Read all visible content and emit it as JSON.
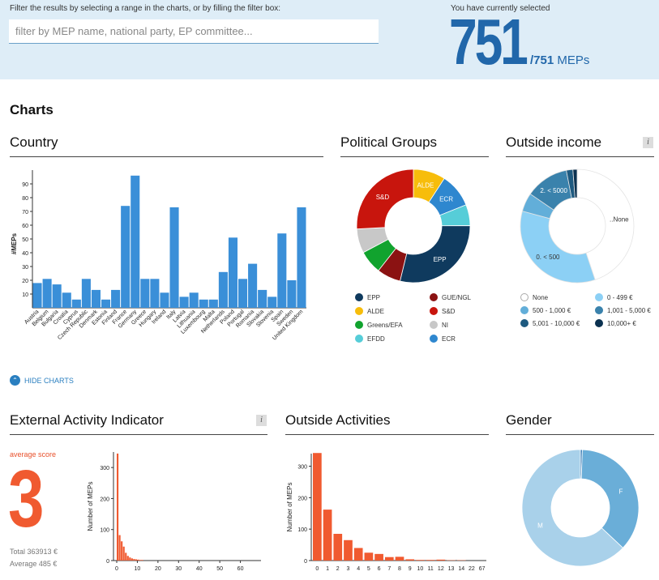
{
  "filter": {
    "hint": "Filter the results by selecting a range in the charts, or by filling the filter box:",
    "placeholder": "filter by MEP name, national party, EP committee..."
  },
  "selection": {
    "caption": "You have currently selected",
    "count": "751",
    "total": "/751",
    "unit": " MEPs"
  },
  "charts_heading": "Charts",
  "hide_charts": "HIDE CHARTS",
  "chart_data": [
    {
      "id": "country",
      "type": "bar",
      "title": "Country",
      "ylabel": "#MEPs",
      "ylim": [
        0,
        100
      ],
      "yticks": [
        "10",
        "20",
        "30",
        "40",
        "50",
        "60",
        "70",
        "80",
        "90"
      ],
      "categories": [
        "Austria",
        "Belgium",
        "Bulgaria",
        "Croatia",
        "Cyprus",
        "Czech Republic",
        "Denmark",
        "Estonia",
        "Finland",
        "France",
        "Germany",
        "Greece",
        "Hungary",
        "Ireland",
        "Italy",
        "Latvia",
        "Lithuania",
        "Luxembourg",
        "Malta",
        "Netherlands",
        "Poland",
        "Portugal",
        "Romania",
        "Slovakia",
        "Slovenia",
        "Spain",
        "Sweden",
        "United Kingdom"
      ],
      "values": [
        18,
        21,
        17,
        11,
        6,
        21,
        13,
        6,
        13,
        74,
        96,
        21,
        21,
        11,
        73,
        8,
        11,
        6,
        6,
        26,
        51,
        21,
        32,
        13,
        8,
        54,
        20,
        73
      ],
      "color": "#3a8fd8"
    },
    {
      "id": "groups",
      "type": "pie",
      "title": "Political Groups",
      "labels": [
        "EPP",
        "GUE/NGL",
        "ALDE",
        "S&D",
        "Greens/EFA",
        "NI",
        "EFDD",
        "ECR"
      ],
      "slice_order": [
        "ALDE",
        "ECR",
        "EFDD",
        "EPP",
        "GUE/NGL",
        "Greens/EFA",
        "NI",
        "S&D"
      ],
      "values": {
        "ALDE": 69,
        "ECR": 73,
        "EFDD": 45,
        "EPP": 217,
        "GUE/NGL": 51,
        "Greens/EFA": 50,
        "NI": 52,
        "S&D": 194
      },
      "slice_labels": {
        "ALDE": "ALDE",
        "ECR": "ECR",
        "EPP": "EPP",
        "S&D": "S&D"
      },
      "colors": {
        "EPP": "#0f3a5e",
        "GUE/NGL": "#8b1212",
        "ALDE": "#f7bd0b",
        "ECR": "#2e87cf",
        "S&D": "#c8150d",
        "Greens/EFA": "#11a32e",
        "NI": "#c8c8c8",
        "EFDD": "#56cdd8"
      }
    },
    {
      "id": "income",
      "type": "pie",
      "title": "Outside income",
      "info": "i",
      "labels": [
        "None",
        "0 - 499 €",
        "500 - 1,000 €",
        "1,001 - 5,000 €",
        "5,001 - 10,000 €",
        "10,000+ €"
      ],
      "slice_order": [
        "None",
        "0 - 499 €",
        "500 - 1,000 €",
        "1,001 - 5,000 €",
        "5,001 - 10,000 €",
        "10,000+ €"
      ],
      "values": {
        "None": 337,
        "0 - 499 €": 258,
        "500 - 1,000 €": 40,
        "1,001 - 5,000 €": 93,
        "5,001 - 10,000 €": 14,
        "10,000+ €": 9
      },
      "slice_labels": {
        "None": "..None",
        "0 - 499 €": "0. < 500",
        "1,001 - 5,000 €": "2. < 5000"
      },
      "colors": {
        "None": "#ffffff",
        "0 - 499 €": "#8cd0f5",
        "500 - 1,000 €": "#62aed9",
        "1,001 - 5,000 €": "#3a82ac",
        "5,001 - 10,000 €": "#1e5a80",
        "10,000+ €": "#0b3150"
      }
    },
    {
      "id": "eai",
      "type": "bar",
      "title": "External Activity Indicator",
      "info": "i",
      "ylabel": "Number of MEPs",
      "ylim": [
        0,
        350
      ],
      "yticks": [
        "0",
        "100",
        "200",
        "300"
      ],
      "xlim": [
        0,
        70
      ],
      "xticks": [
        "0",
        "10",
        "20",
        "30",
        "40",
        "50",
        "60"
      ],
      "x": [
        0,
        1,
        2,
        3,
        4,
        5,
        6,
        7,
        8,
        9,
        10,
        11,
        12
      ],
      "values": [
        345,
        82,
        62,
        45,
        25,
        15,
        10,
        7,
        5,
        4,
        3,
        2,
        2
      ],
      "color": "#f05a30"
    },
    {
      "id": "activities",
      "type": "bar",
      "title": "Outside Activities",
      "ylabel": "Number of MEPs",
      "ylim": [
        0,
        340
      ],
      "yticks": [
        "0",
        "100",
        "200",
        "300"
      ],
      "categories": [
        "0",
        "1",
        "2",
        "3",
        "4",
        "5",
        "6",
        "7",
        "8",
        "9",
        "10",
        "11",
        "12",
        "13",
        "14",
        "22",
        "67"
      ],
      "values": [
        342,
        162,
        85,
        65,
        40,
        25,
        21,
        11,
        12,
        4,
        2,
        2,
        3,
        1,
        1,
        0,
        0
      ],
      "color": "#f05a30"
    },
    {
      "id": "gender",
      "type": "pie",
      "title": "Gender",
      "labels": [
        "F",
        "M"
      ],
      "slice_order": [
        "dot",
        "F",
        "M"
      ],
      "values": {
        "dot": 4,
        "F": 274,
        "M": 473
      },
      "slice_labels": {
        "F": "F",
        "M": "M"
      },
      "colors": {
        "dot": "#2d73b0",
        "F": "#6aaed8",
        "M": "#a9d1ea"
      }
    }
  ],
  "eai": {
    "avg_label": "average score",
    "avg_value": "3",
    "total": "Total 363913 €",
    "average": "Average 485 €"
  }
}
